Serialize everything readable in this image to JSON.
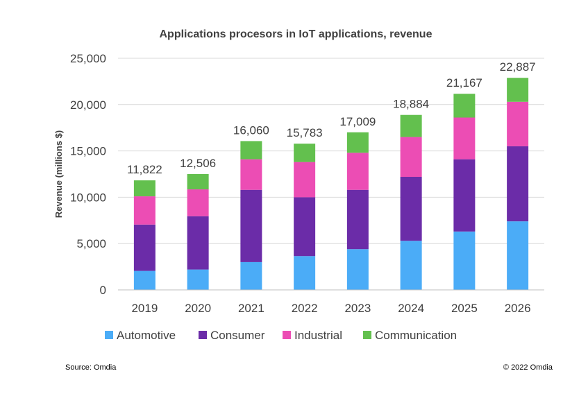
{
  "chart_data": {
    "type": "bar",
    "stacked": true,
    "title": "Applications procesors in IoT applications, revenue",
    "xlabel": "",
    "ylabel": "Revenue  (millions $)",
    "ylim": [
      0,
      25000
    ],
    "yticks": [
      0,
      5000,
      10000,
      15000,
      20000,
      25000
    ],
    "ytick_labels": [
      "0",
      "5,000",
      "10,000",
      "15,000",
      "20,000",
      "25,000"
    ],
    "grid": true,
    "legend": "bottom",
    "categories": [
      "2019",
      "2020",
      "2021",
      "2022",
      "2023",
      "2024",
      "2025",
      "2026"
    ],
    "series": [
      {
        "name": "Automotive",
        "color": "#4BACF7",
        "values": [
          2050,
          2200,
          3000,
          3650,
          4400,
          5300,
          6300,
          7400
        ]
      },
      {
        "name": "Consumer",
        "color": "#6B2CA8",
        "values": [
          5000,
          5750,
          7800,
          6350,
          6400,
          6900,
          7800,
          8100
        ]
      },
      {
        "name": "Industrial",
        "color": "#EC4DB4",
        "values": [
          3050,
          2900,
          3300,
          3800,
          4000,
          4300,
          4500,
          4800
        ]
      },
      {
        "name": "Communication",
        "color": "#63C04E",
        "values": [
          1722,
          1656,
          1960,
          1983,
          2209,
          2384,
          2567,
          2587
        ]
      }
    ],
    "totals": [
      11822,
      12506,
      16060,
      15783,
      17009,
      18884,
      21167,
      22887
    ],
    "total_labels": [
      "11,822",
      "12,506",
      "16,060",
      "15,783",
      "17,009",
      "18,884",
      "21,167",
      "22,887"
    ]
  },
  "footer": {
    "source": "Source: Omdia",
    "copyright": "© 2022 Omdia"
  },
  "colors": {
    "grid": "#d9d9d9",
    "axis": "#bfbfbf",
    "text": "#404040"
  }
}
